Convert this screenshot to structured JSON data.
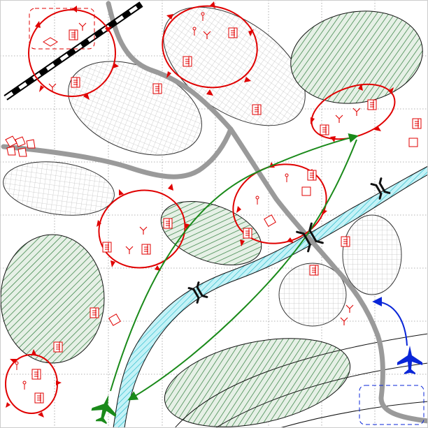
{
  "map": {
    "grid": true,
    "colors": {
      "background": "#ffffff",
      "grid": "#9a9a9a",
      "road": "#9a9a9a",
      "river_fill": "#bff0f5",
      "river_hatch": "#1bb7c8",
      "forest_hatch": "#2f7d3c",
      "forest_fill": "#e3efe3",
      "urban_hatch": "#c9c9c9",
      "hostile": "#e00000",
      "friendly_green": "#1a8a1a",
      "friendly_blue": "#0a26d8",
      "bridge": "#111111"
    },
    "areas": [
      {
        "name": "urban-area",
        "kind": "urban"
      },
      {
        "name": "forest-area",
        "kind": "forest"
      }
    ],
    "hostile_units": {
      "symbol": "hostile-unit-icon",
      "boundary": "hostile-boundary"
    },
    "routes": [
      {
        "name": "friendly-advance-route",
        "color": "green"
      },
      {
        "name": "air-route",
        "color": "blue"
      }
    ],
    "icons": [
      "bridge-icon",
      "aircraft-icon",
      "railway-line",
      "river",
      "road"
    ]
  }
}
